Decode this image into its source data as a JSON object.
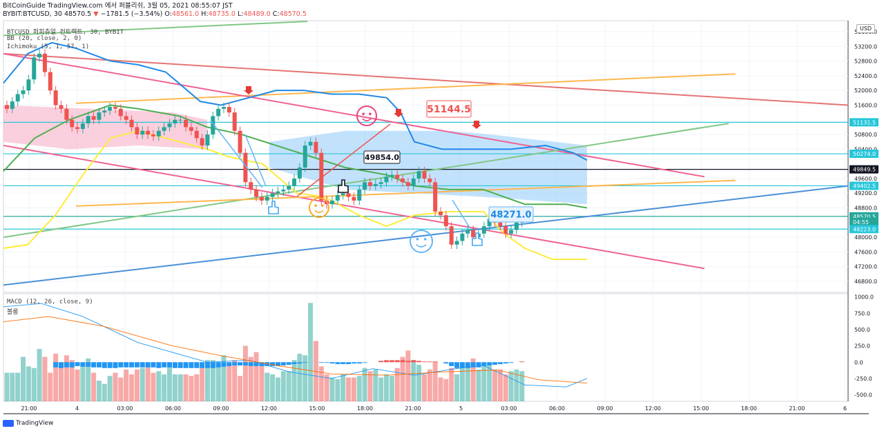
{
  "header": {
    "line1": "BitCoinGuide TradingView.com 에서 퍼블리쉬, 3월 05, 2021 08:55:07 JST",
    "symbol_line": "BYBIT:BTCUSD, 30",
    "last": "48570.5",
    "change": "−1781.5 (−3.54%)",
    "o_label": "O:",
    "o": "48561.0",
    "h_label": "H:",
    "h": "48735.0",
    "l_label": "L:",
    "l": "48489.0",
    "c_label": "C:",
    "c": "48570.5"
  },
  "legend": {
    "title": "BTCUSD 퍼피츄얼 컨트랙트, 30, BYBIT",
    "bb": "BB (20, close, 2, 0)",
    "ichimoku": "Ichimoku (5, 1, 57, 1)",
    "macd": "MACD (12, 26, close, 9)",
    "histogram": "볼룸"
  },
  "currency_button": "USD",
  "branding": "TradingView",
  "colors": {
    "up": "#26a69a",
    "down": "#ef5350",
    "macd_line": "#2196f3",
    "signal_line": "#ff6d00",
    "bb_mid": "#4caf50",
    "bb_lower": "#ffeb3b",
    "cloud_bull": "#90caf9",
    "cloud_bear": "#f8bbd0"
  },
  "chart_data": {
    "type": "candlestick",
    "title": "",
    "x_ticks": [
      "21:00",
      "4",
      "03:00",
      "06:00",
      "09:00",
      "12:00",
      "15:00",
      "18:00",
      "21:00",
      "5",
      "03:00",
      "06:00",
      "09:00",
      "12:00",
      "15:00",
      "18:00",
      "21:00",
      "6"
    ],
    "price_ticks": [
      53600,
      53200,
      52800,
      52400,
      52000,
      51600,
      50800,
      50400,
      49600,
      49200,
      48800,
      48000,
      47600,
      47200,
      46800
    ],
    "price_range": [
      46500,
      53900
    ],
    "price_labels": [
      {
        "value": 51131.5,
        "text": "51131.5",
        "color": "#26c6da"
      },
      {
        "value": 50274.0,
        "text": "50274.0",
        "color": "#26c6da"
      },
      {
        "value": 49849.5,
        "text": "49849.5",
        "color": "#131722"
      },
      {
        "value": 49402.5,
        "text": "49402.5",
        "color": "#26c6da"
      },
      {
        "value": 48570.5,
        "text": "48570.5",
        "color": "#26a69a"
      },
      {
        "value": 48420.0,
        "text": "04:55",
        "color": "#26a69a"
      },
      {
        "value": 48223.0,
        "text": "48223.0",
        "color": "#26c6da"
      }
    ],
    "annotations": [
      {
        "text": "51144.5",
        "style": "red-box"
      },
      {
        "text": "49854.0",
        "style": "black-box"
      },
      {
        "text": "48271.0",
        "style": "blue-box"
      }
    ],
    "candles_close": [
      51500,
      51700,
      51900,
      52000,
      52300,
      52900,
      53000,
      52500,
      52000,
      51600,
      51500,
      51200,
      51000,
      50950,
      51100,
      51300,
      51200,
      51400,
      51450,
      51550,
      51500,
      51300,
      51200,
      51000,
      50800,
      50900,
      50800,
      50750,
      50900,
      51000,
      51100,
      51200,
      51200,
      51000,
      50900,
      50700,
      50500,
      50800,
      51300,
      51500,
      51550,
      51400,
      50900,
      50300,
      49500,
      49300,
      49100,
      49000,
      49100,
      49200,
      49250,
      49300,
      49400,
      49600,
      49900,
      50500,
      50600,
      50300,
      49000,
      48900,
      49000,
      49150,
      49200,
      49100,
      49000,
      49300,
      49500,
      49400,
      49450,
      49500,
      49650,
      49700,
      49600,
      49500,
      49400,
      49600,
      49800,
      49600,
      49500,
      48700,
      48600,
      48300,
      47800,
      47900,
      48100,
      48200,
      48000,
      48100,
      48300,
      48500,
      48400,
      48300,
      48100,
      48200,
      48400,
      48570.5
    ],
    "macd_range": [
      -600,
      1050
    ],
    "macd_ticks": [
      1000,
      750,
      500,
      250,
      0,
      -250,
      -500
    ],
    "volume": [
      180,
      180,
      180,
      280,
      220,
      210,
      330,
      280,
      180,
      300,
      230,
      290,
      260,
      200,
      230,
      270,
      180,
      130,
      110,
      160,
      180,
      150,
      200,
      170,
      200,
      210,
      230,
      180,
      190,
      170,
      240,
      170,
      170,
      170,
      160,
      170,
      210,
      260,
      260,
      240,
      290,
      230,
      260,
      160,
      350,
      280,
      310,
      240,
      180,
      170,
      150,
      190,
      190,
      260,
      300,
      290,
      620,
      380,
      220,
      170,
      150,
      140,
      170,
      150,
      150,
      160,
      210,
      190,
      200,
      150,
      170,
      160,
      210,
      280,
      320,
      260,
      230,
      170,
      200,
      250,
      150,
      140,
      210,
      170,
      210,
      240,
      270,
      200,
      240,
      230,
      200,
      200,
      170,
      190,
      200,
      190
    ]
  }
}
